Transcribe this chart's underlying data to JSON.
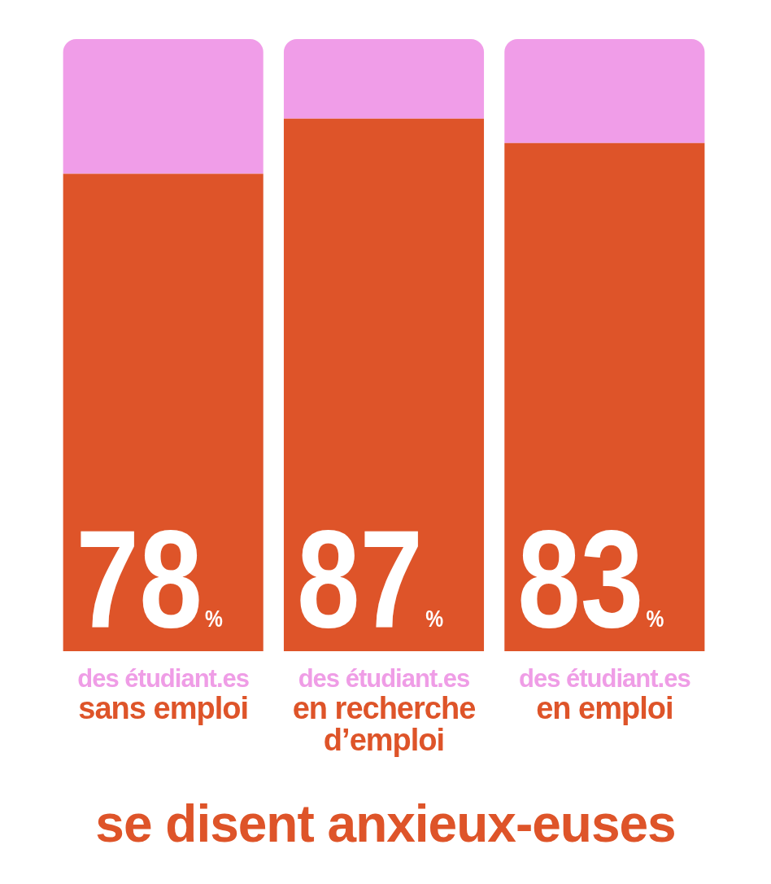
{
  "chart_data": {
    "type": "bar",
    "title": "se disent anxieux-euses",
    "categories": [
      "sans emploi",
      "en recherche d’emploi",
      "en emploi"
    ],
    "series": [
      {
        "color": "#de5429",
        "values": [
          78,
          87,
          83
        ],
        "value_labels": [
          "78%",
          "87%",
          "83%"
        ]
      },
      {
        "color": "#f09de8",
        "values": [
          22,
          13,
          17
        ]
      }
    ],
    "stacked": true,
    "ylim": [
      0,
      100
    ],
    "grid": false,
    "legend": false,
    "tick_labels": false,
    "annotations": [
      "des étudiant.es",
      "des étudiant.es",
      "des étudiant.es"
    ]
  }
}
